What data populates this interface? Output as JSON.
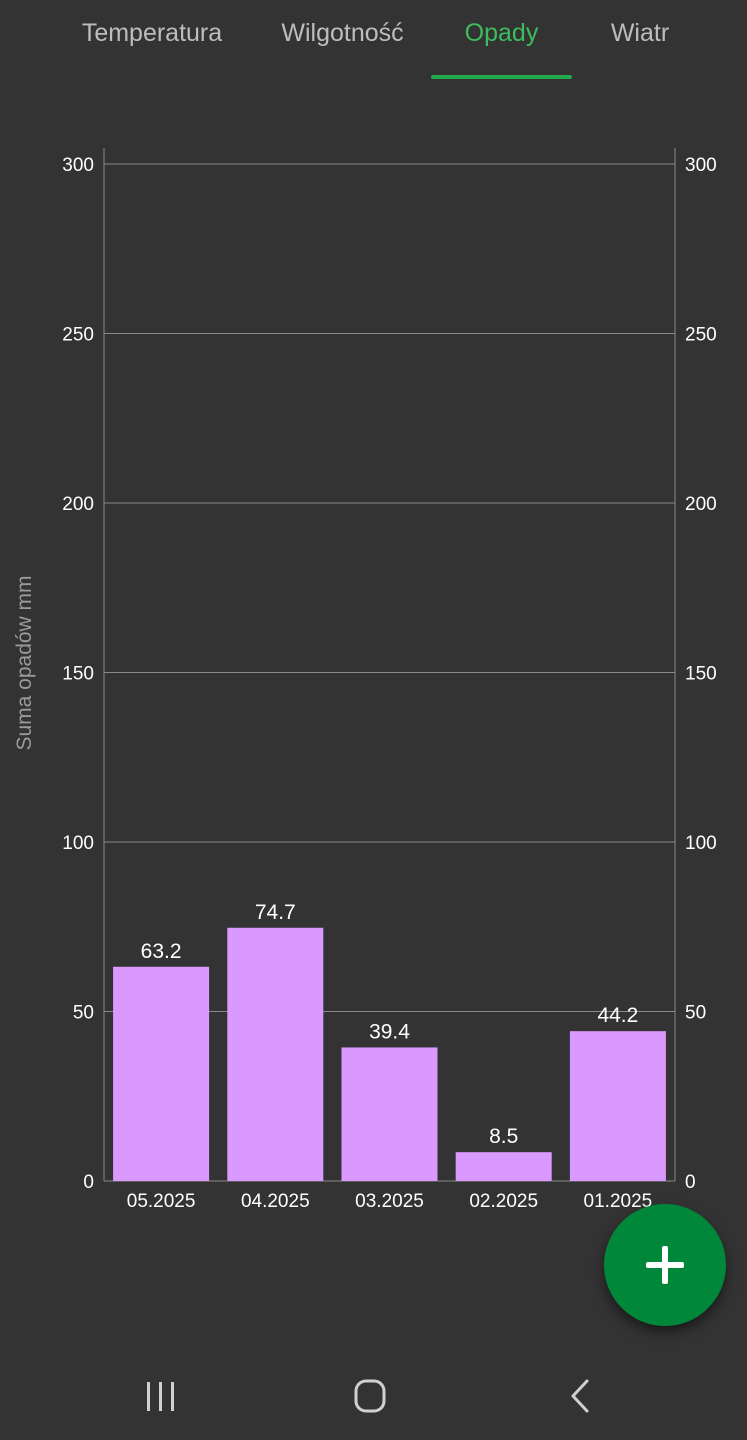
{
  "tabs": [
    {
      "label": "Temperatura",
      "active": false
    },
    {
      "label": "Wilgotność",
      "active": false
    },
    {
      "label": "Opady",
      "active": true
    },
    {
      "label": "Wiatr",
      "active": false
    }
  ],
  "colors": {
    "background": "#333333",
    "accent": "#22a94a",
    "bar": "#da99ff",
    "fab": "#00873a"
  },
  "chart_data": {
    "type": "bar",
    "categories": [
      "05.2025",
      "04.2025",
      "03.2025",
      "02.2025",
      "01.2025"
    ],
    "values": [
      63.2,
      74.7,
      39.4,
      8.5,
      44.2
    ],
    "data_labels": [
      "63.2",
      "74.7",
      "39.4",
      "8.5",
      "44.2"
    ],
    "ylabel": "Suma opadów mm",
    "ylim": [
      0,
      300
    ],
    "yticks": [
      0,
      50,
      100,
      150,
      200,
      250,
      300
    ],
    "right_axis": true,
    "grid": true,
    "legend": "none"
  },
  "fab": {
    "icon": "plus-icon"
  },
  "navbar": {
    "buttons": [
      {
        "name": "recent-apps-icon"
      },
      {
        "name": "home-icon"
      },
      {
        "name": "back-icon"
      }
    ]
  }
}
